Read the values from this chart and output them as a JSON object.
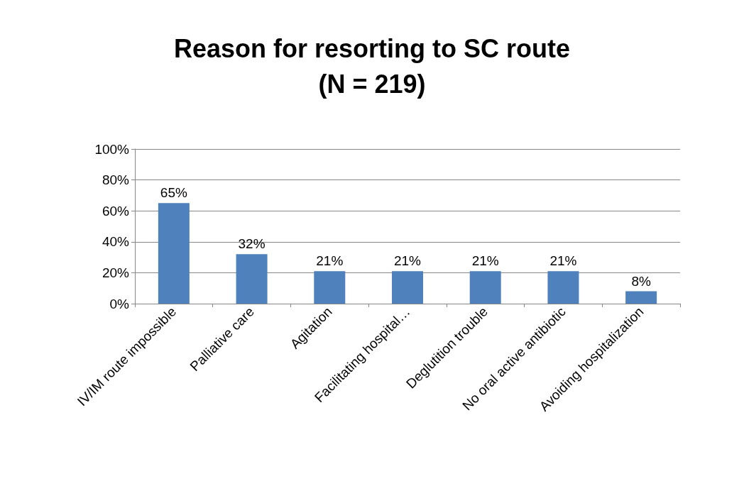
{
  "chart_data": {
    "type": "bar",
    "title": "Reason for resorting to SC route\n(N = 219)",
    "categories": [
      "IV/IM route impossible",
      "Palliative care",
      "Agitation",
      "Facilitating hospital…",
      "Deglutition trouble",
      "No oral active antibiotic",
      "Avoiding hospitalization"
    ],
    "values": [
      65,
      32,
      21,
      21,
      21,
      21,
      8
    ],
    "color": "#4f81bd",
    "value_labels": [
      "65%",
      "32%",
      "21%",
      "21%",
      "21%",
      "21%",
      "8%"
    ],
    "ylim": [
      0,
      100
    ],
    "yticks": [
      {
        "value": 0,
        "label": "0%"
      },
      {
        "value": 20,
        "label": "20%"
      },
      {
        "value": 40,
        "label": "40%"
      },
      {
        "value": 60,
        "label": "60%"
      },
      {
        "value": 80,
        "label": "80%"
      },
      {
        "value": 100,
        "label": "100%"
      }
    ],
    "grid": true
  }
}
